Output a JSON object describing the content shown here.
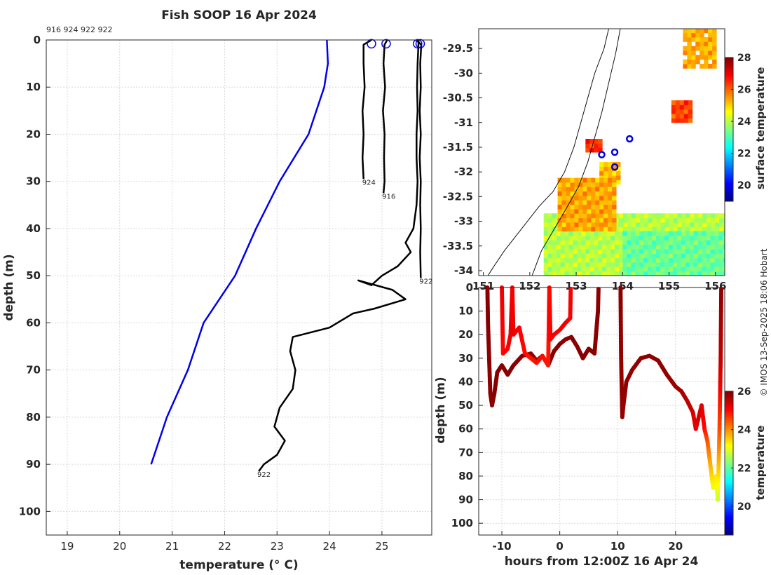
{
  "chart_data": [
    {
      "type": "line",
      "title": "Fish SOOP 16 Apr 2024",
      "top_note": "916 924 922 922",
      "xlabel": "temperature (° C)",
      "ylabel": "depth (m)",
      "xlim": [
        18.6,
        25.95
      ],
      "ylim": [
        105,
        0
      ],
      "xticks": [
        19,
        20,
        21,
        22,
        23,
        24,
        25
      ],
      "yticks": [
        0,
        10,
        20,
        30,
        40,
        50,
        60,
        70,
        80,
        90,
        100
      ],
      "climatology": {
        "name": "climatology",
        "color": "#0000ee",
        "points": [
          [
            23.95,
            0
          ],
          [
            23.97,
            5
          ],
          [
            23.9,
            10
          ],
          [
            23.6,
            20
          ],
          [
            23.05,
            30
          ],
          [
            22.6,
            40
          ],
          [
            22.2,
            50
          ],
          [
            21.6,
            60
          ],
          [
            21.3,
            70
          ],
          [
            20.9,
            80
          ],
          [
            20.6,
            90
          ]
        ]
      },
      "profiles": [
        {
          "id": "924",
          "label": "924",
          "color": "#000000",
          "points": [
            [
              24.8,
              0
            ],
            [
              24.65,
              1
            ],
            [
              24.65,
              5
            ],
            [
              24.67,
              10
            ],
            [
              24.63,
              15
            ],
            [
              24.65,
              20
            ],
            [
              24.63,
              25
            ],
            [
              24.65,
              29.5
            ]
          ],
          "label_at": [
            24.65,
            29.5
          ]
        },
        {
          "id": "916",
          "label": "916",
          "color": "#000000",
          "points": [
            [
              25.1,
              0
            ],
            [
              25.05,
              1
            ],
            [
              25.03,
              5
            ],
            [
              25.06,
              10
            ],
            [
              25.02,
              15
            ],
            [
              25.05,
              20
            ],
            [
              25.04,
              25
            ],
            [
              25.05,
              30
            ],
            [
              25.03,
              32.5
            ]
          ],
          "label_at": [
            25.03,
            32.5
          ]
        },
        {
          "id": "922a",
          "label": "922",
          "color": "#000000",
          "points": [
            [
              25.65,
              0
            ],
            [
              25.75,
              1
            ],
            [
              25.73,
              5
            ],
            [
              25.74,
              10
            ],
            [
              25.72,
              15
            ],
            [
              25.74,
              20
            ],
            [
              25.72,
              25
            ],
            [
              25.74,
              30
            ],
            [
              25.73,
              35
            ],
            [
              25.74,
              40
            ],
            [
              25.73,
              45
            ],
            [
              25.74,
              50.5
            ]
          ],
          "label_at": [
            25.74,
            50.5
          ]
        },
        {
          "id": "922b",
          "label": "922",
          "color": "#000000",
          "points": [
            [
              25.7,
              0
            ],
            [
              25.68,
              5
            ],
            [
              25.67,
              10
            ],
            [
              25.68,
              15
            ],
            [
              25.66,
              20
            ],
            [
              25.66,
              25
            ],
            [
              25.68,
              30
            ],
            [
              25.66,
              35
            ],
            [
              25.6,
              40
            ],
            [
              25.45,
              43
            ],
            [
              25.55,
              45
            ],
            [
              25.3,
              48
            ],
            [
              25.0,
              50
            ],
            [
              24.8,
              52
            ],
            [
              24.55,
              51
            ],
            [
              25.2,
              53
            ],
            [
              25.45,
              55
            ],
            [
              24.85,
              57
            ],
            [
              24.45,
              58
            ],
            [
              24.0,
              61
            ],
            [
              23.3,
              63
            ],
            [
              23.25,
              66
            ],
            [
              23.35,
              70
            ],
            [
              23.3,
              74
            ],
            [
              23.05,
              78
            ],
            [
              22.95,
              82
            ],
            [
              23.15,
              85
            ],
            [
              23.0,
              88
            ],
            [
              22.75,
              90
            ],
            [
              22.65,
              91.5
            ]
          ],
          "label_at": [
            22.65,
            91.5
          ]
        }
      ],
      "circles": [
        [
          24.8,
          0.8
        ],
        [
          25.08,
          0.8
        ],
        [
          25.68,
          0.8
        ],
        [
          25.73,
          0.8
        ]
      ]
    },
    {
      "type": "heatmap",
      "title": "",
      "xlabel": "",
      "ylabel": "",
      "xlim": [
        150.9,
        156.2
      ],
      "ylim": [
        -34.1,
        -29.1
      ],
      "xticks": [
        151,
        152,
        153,
        154,
        155,
        156
      ],
      "yticks": [
        -29.5,
        -30,
        -30.5,
        -31,
        -31.5,
        -32,
        -32.5,
        -33,
        -33.5,
        -34
      ],
      "colorbar_label": "surface temperature",
      "colorbar_range": [
        19,
        28
      ],
      "colorbar_ticks": [
        20,
        22,
        24,
        26,
        28
      ],
      "stations": [
        [
          153.55,
          -31.65
        ],
        [
          153.83,
          -31.6
        ],
        [
          154.15,
          -31.33
        ],
        [
          153.83,
          -31.9
        ]
      ],
      "sst_patches": [
        {
          "lon": [
            155.3,
            156.0
          ],
          "lat": [
            -29.9,
            -29.1
          ],
          "value": 25.3
        },
        {
          "lon": [
            155.05,
            155.5
          ],
          "lat": [
            -31.0,
            -30.6
          ],
          "value": 26.3
        },
        {
          "lon": [
            153.2,
            153.55
          ],
          "lat": [
            -31.6,
            -31.35
          ],
          "value": 26.5
        },
        {
          "lon": [
            153.5,
            153.95
          ],
          "lat": [
            -32.25,
            -31.85
          ],
          "value": 25.2
        },
        {
          "lon": [
            152.3,
            156.2
          ],
          "lat": [
            -34.1,
            -32.9
          ],
          "value": 24.0
        },
        {
          "lon": [
            154.0,
            156.2
          ],
          "lat": [
            -34.1,
            -33.2
          ],
          "value": 23.3
        },
        {
          "lon": [
            152.6,
            153.8
          ],
          "lat": [
            -33.2,
            -32.2
          ],
          "value": 25.4
        }
      ]
    },
    {
      "type": "scatter",
      "title": "",
      "xlabel": "hours from 12:00Z 16 Apr 24",
      "ylabel": "depth (m)",
      "xlim": [
        -14,
        28.5
      ],
      "ylim": [
        105,
        0
      ],
      "xticks": [
        -10,
        0,
        10,
        20
      ],
      "yticks": [
        0,
        10,
        20,
        30,
        40,
        50,
        60,
        70,
        80,
        90,
        100
      ],
      "colorbar_label": "temperature",
      "colorbar_range": [
        18.5,
        26
      ],
      "colorbar_ticks": [
        20,
        22,
        24,
        26
      ],
      "tracks": [
        {
          "t0": -12.5,
          "t1": -11.5,
          "points": [
            [
              -12.5,
              0,
              25.9
            ],
            [
              -12.4,
              15,
              25.95
            ],
            [
              -12.2,
              30,
              25.9
            ],
            [
              -12.0,
              45,
              25.9
            ],
            [
              -11.7,
              50,
              25.9
            ],
            [
              -11.3,
              45,
              25.95
            ],
            [
              -10.8,
              36,
              25.95
            ],
            [
              -10.0,
              33,
              25.95
            ],
            [
              -9.0,
              37,
              25.95
            ],
            [
              -8.0,
              33,
              25.95
            ],
            [
              -6.5,
              29,
              25.9
            ],
            [
              -5.0,
              28,
              25.9
            ],
            [
              -4.0,
              31,
              25.85
            ],
            [
              -3.0,
              29,
              25.9
            ],
            [
              -2.0,
              33,
              25.9
            ],
            [
              -1.0,
              27,
              25.95
            ],
            [
              0.0,
              24,
              25.95
            ],
            [
              1.0,
              22,
              25.9
            ],
            [
              2.0,
              21,
              25.95
            ],
            [
              3.0,
              25,
              25.9
            ],
            [
              4.0,
              30,
              25.95
            ],
            [
              5.0,
              26,
              25.95
            ],
            [
              6.0,
              28,
              25.9
            ],
            [
              6.6,
              10,
              25.95
            ],
            [
              6.7,
              0,
              25.9
            ]
          ]
        },
        {
          "t0": -10,
          "t1": 2,
          "points": [
            [
              -10.0,
              0,
              25.2
            ],
            [
              -9.9,
              15,
              25.1
            ],
            [
              -9.8,
              28,
              25.0
            ],
            [
              -9.0,
              26,
              25.1
            ],
            [
              -8.5,
              20,
              25.2
            ],
            [
              -8.2,
              0,
              25.1
            ],
            [
              -8.0,
              20,
              25.2
            ],
            [
              -7.0,
              17,
              25.1
            ],
            [
              -6.0,
              28,
              25.0
            ],
            [
              -5.0,
              30,
              24.9
            ],
            [
              -4.0,
              32,
              24.95
            ],
            [
              -3.0,
              29,
              25.0
            ],
            [
              -2.0,
              33,
              24.9
            ],
            [
              -1.8,
              0,
              25.0
            ],
            [
              -1.6,
              22,
              25.1
            ],
            [
              -1.0,
              20,
              25.1
            ],
            [
              0.0,
              18,
              25.1
            ],
            [
              1.0,
              15,
              25.2
            ],
            [
              1.8,
              13,
              25.1
            ],
            [
              1.9,
              0,
              25.1
            ]
          ]
        },
        {
          "t0": 10.5,
          "t1": 28,
          "points": [
            [
              10.5,
              0,
              25.9
            ],
            [
              10.6,
              30,
              25.85
            ],
            [
              10.8,
              55,
              25.85
            ],
            [
              11.0,
              50,
              25.8
            ],
            [
              11.5,
              40,
              25.9
            ],
            [
              12.5,
              35,
              25.85
            ],
            [
              14.0,
              30,
              25.9
            ],
            [
              15.5,
              29,
              25.9
            ],
            [
              17.0,
              31,
              25.85
            ],
            [
              18.5,
              37,
              25.85
            ],
            [
              20.0,
              42,
              25.8
            ],
            [
              21.0,
              44,
              25.75
            ],
            [
              22.0,
              48,
              25.6
            ],
            [
              23.0,
              53,
              25.4
            ],
            [
              23.5,
              60,
              25.2
            ],
            [
              24.0,
              55,
              25.4
            ],
            [
              24.5,
              50,
              25.3
            ],
            [
              25.0,
              60,
              25.0
            ],
            [
              25.5,
              65,
              24.5
            ],
            [
              26.0,
              75,
              23.8
            ],
            [
              26.5,
              85,
              23.2
            ],
            [
              27.0,
              80,
              23.4
            ],
            [
              27.3,
              90,
              22.8
            ],
            [
              27.6,
              60,
              24.5
            ],
            [
              27.8,
              30,
              25.5
            ],
            [
              27.9,
              0,
              25.9
            ]
          ]
        }
      ]
    }
  ],
  "credit": "© IMOS 13-Sep-2025 18:06 Hobart"
}
